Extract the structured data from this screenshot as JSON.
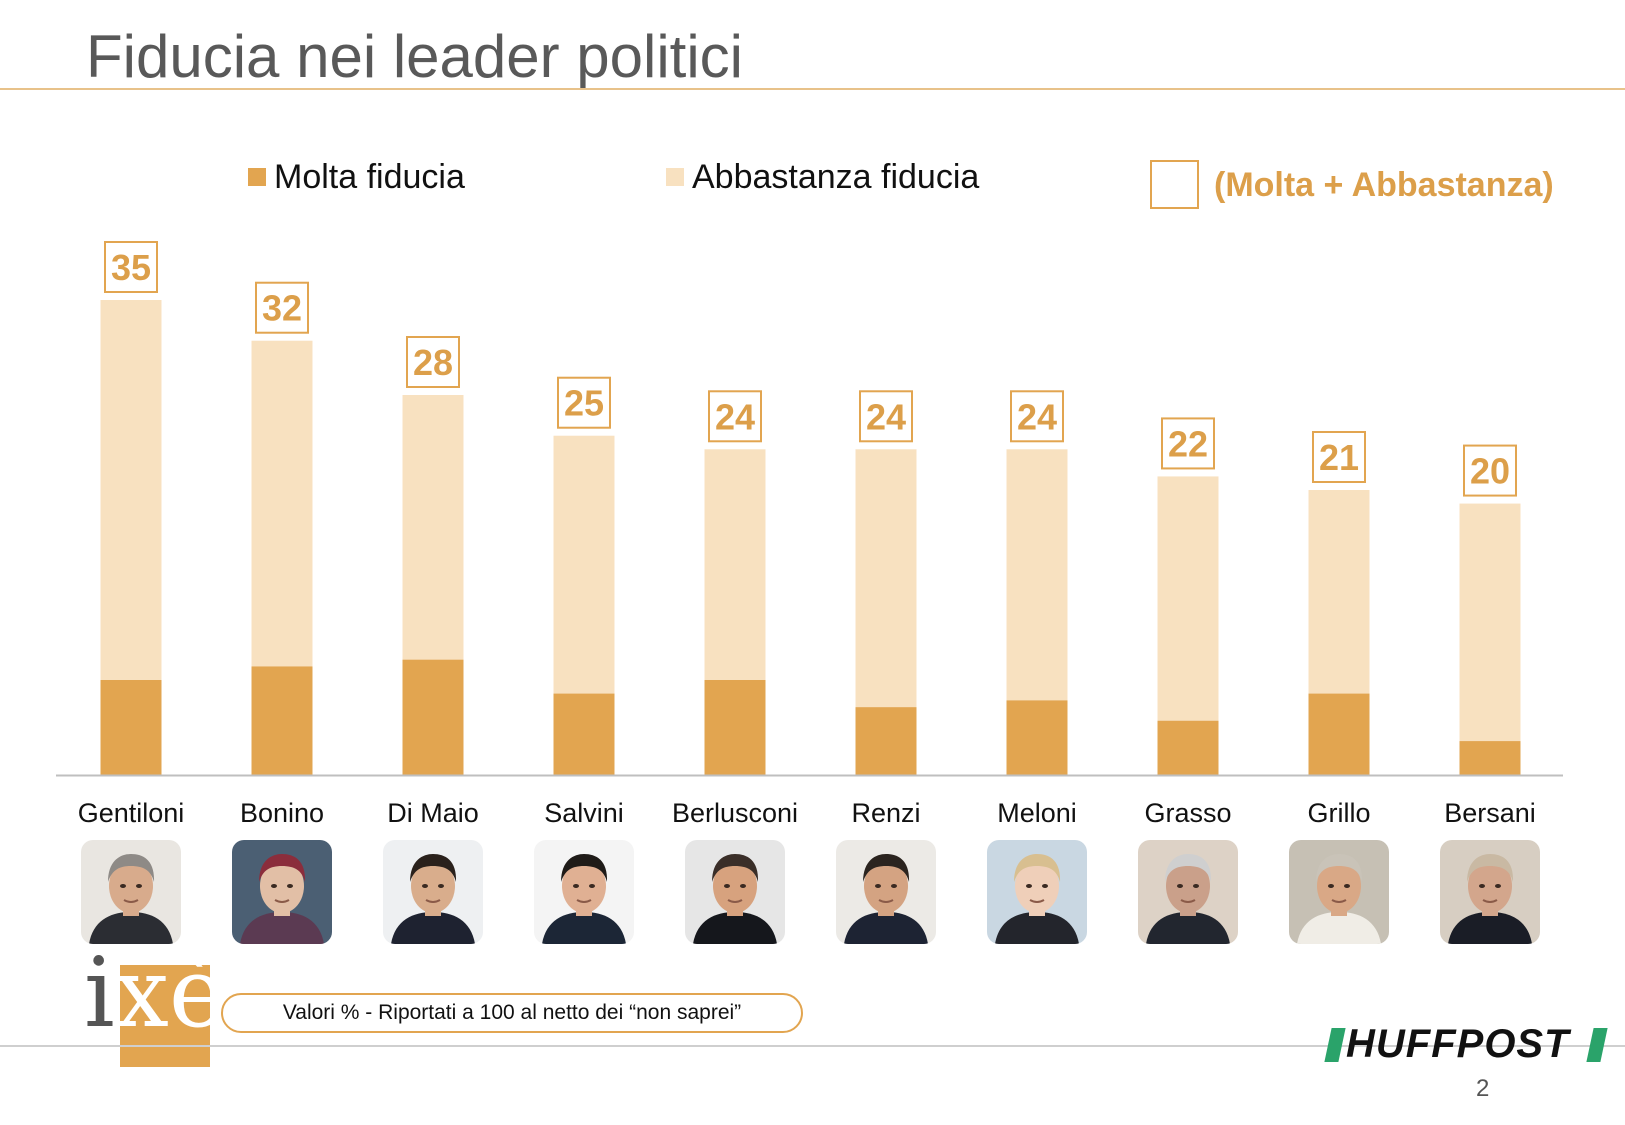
{
  "page": {
    "title": "Fiducia nei leader politici",
    "note": "Valori % - Riportati a 100 al netto dei “non saprei”",
    "page_number": "2",
    "logo_left_text": "ixè",
    "logo_right_text": "HUFFPOST"
  },
  "colors": {
    "molta": "#e2a550",
    "abbastanza": "#f8e1c0",
    "total_label": "#dc9f4a",
    "axis": "#bfbfbf"
  },
  "chart_data": {
    "type": "bar",
    "stacked": true,
    "title": "Fiducia nei leader politici",
    "categories": [
      "Gentiloni",
      "Bonino",
      "Di Maio",
      "Salvini",
      "Berlusconi",
      "Renzi",
      "Meloni",
      "Grasso",
      "Grillo",
      "Bersani"
    ],
    "series": [
      {
        "name": "Molta fiducia",
        "color": "#e2a550",
        "values": [
          7,
          8,
          8.5,
          6,
          7,
          5,
          5.5,
          4,
          6,
          2.5
        ]
      },
      {
        "name": "Abbastanza fiducia",
        "color": "#f8e1c0",
        "values": [
          28,
          24,
          19.5,
          19,
          17,
          19,
          18.5,
          18,
          15,
          17.5
        ]
      }
    ],
    "totals": [
      35,
      32,
      28,
      25,
      24,
      24,
      24,
      22,
      21,
      20
    ],
    "totals_legend": "(Molta + Abbastanza)",
    "ylim": [
      0,
      35
    ],
    "grid": false,
    "legend_position": "top"
  },
  "portraits": [
    {
      "name": "Gentiloni",
      "bg": "#e9e6e1",
      "skin": "#d8ab8c",
      "hair": "#8e8a86",
      "suit": "#2b2d33"
    },
    {
      "name": "Bonino",
      "bg": "#4b5f73",
      "skin": "#e2bfa6",
      "hair": "#8b2d3c",
      "suit": "#5b3a52"
    },
    {
      "name": "Di Maio",
      "bg": "#eef0f2",
      "skin": "#d9ad8c",
      "hair": "#2a211c",
      "suit": "#1e2230"
    },
    {
      "name": "Salvini",
      "bg": "#f4f4f4",
      "skin": "#e0b093",
      "hair": "#1f1b18",
      "suit": "#1c2636"
    },
    {
      "name": "Berlusconi",
      "bg": "#e6e6e6",
      "skin": "#d7a27e",
      "hair": "#3a2e28",
      "suit": "#15171c"
    },
    {
      "name": "Renzi",
      "bg": "#eceae6",
      "skin": "#d4a382",
      "hair": "#2b241f",
      "suit": "#1d2333"
    },
    {
      "name": "Meloni",
      "bg": "#c9d7e2",
      "skin": "#efcfb9",
      "hair": "#d8bf90",
      "suit": "#23252c"
    },
    {
      "name": "Grasso",
      "bg": "#ddd2c6",
      "skin": "#caa08a",
      "hair": "#cfcfcf",
      "suit": "#22262f"
    },
    {
      "name": "Grillo",
      "bg": "#c6c0b4",
      "skin": "#d9a886",
      "hair": "#c9c3b8",
      "suit": "#f0ede6"
    },
    {
      "name": "Bersani",
      "bg": "#d7cec2",
      "skin": "#d3a68c",
      "hair": "#c9b9a3",
      "suit": "#1a1d26"
    }
  ]
}
